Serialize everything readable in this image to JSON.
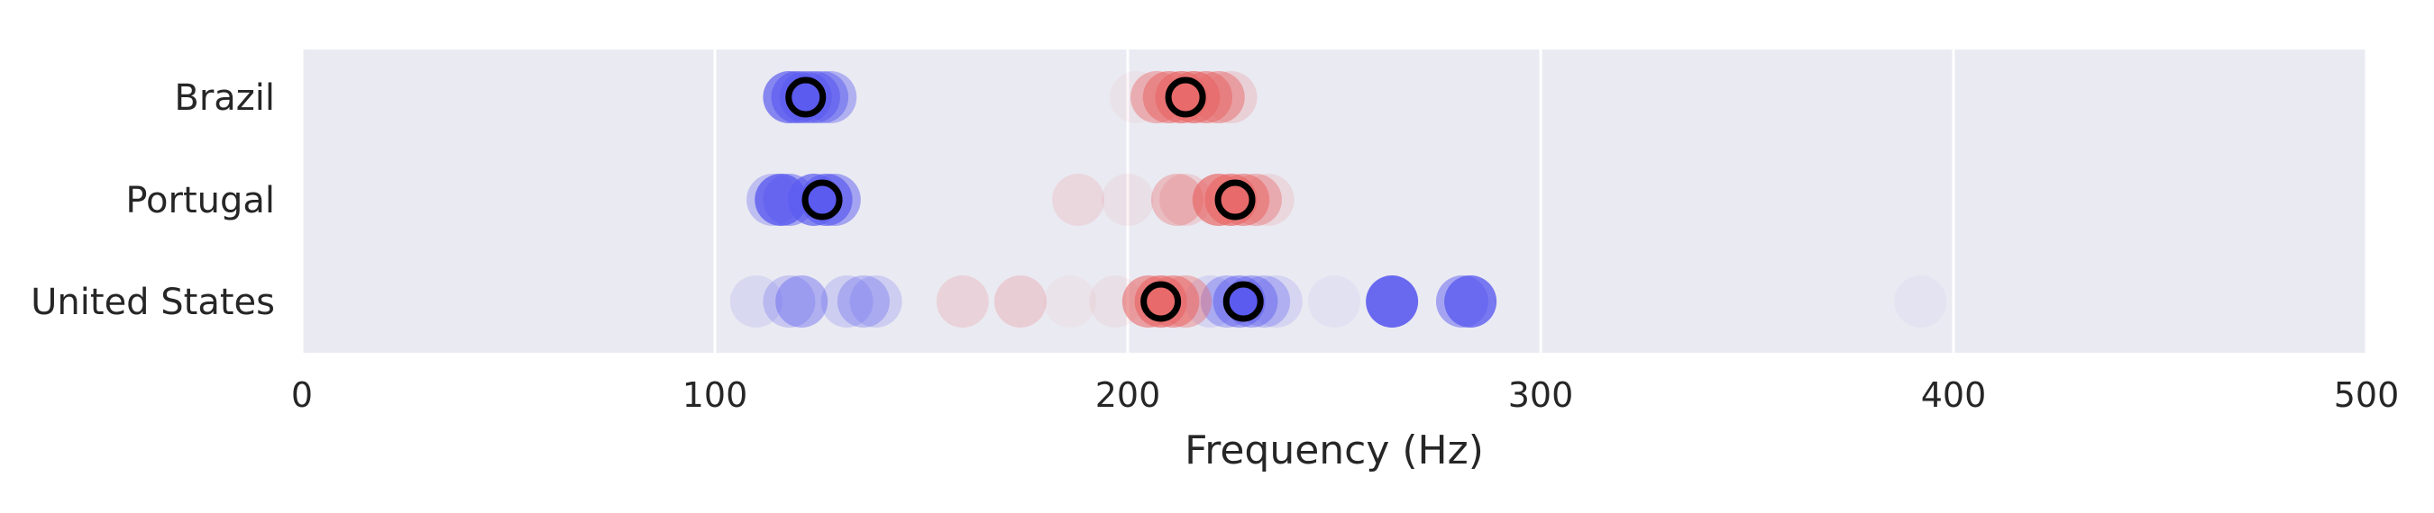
{
  "chart_data": {
    "type": "scatter",
    "xlabel": "Frequency (Hz)",
    "ylabel": "",
    "xlim": [
      0,
      500
    ],
    "xticks": [
      0,
      100,
      200,
      300,
      400,
      500
    ],
    "grid": "x",
    "categories": [
      "Brazil",
      "Portugal",
      "United States"
    ],
    "colors": {
      "background": "#eaeaf2",
      "grid": "#ffffff",
      "series_blue": "#5b5bf0",
      "series_red": "#e86a6a",
      "mean_marker_edge": "#000000"
    },
    "series": [
      {
        "color_key": "series_blue",
        "points": [
          {
            "category": "Brazil",
            "x": 118,
            "opacity": 0.7
          },
          {
            "category": "Brazil",
            "x": 120,
            "opacity": 0.7
          },
          {
            "category": "Brazil",
            "x": 122,
            "opacity": 0.6
          },
          {
            "category": "Brazil",
            "x": 124,
            "opacity": 0.6
          },
          {
            "category": "Brazil",
            "x": 126,
            "opacity": 0.5
          },
          {
            "category": "Brazil",
            "x": 128,
            "opacity": 0.4
          },
          {
            "category": "Portugal",
            "x": 114,
            "opacity": 0.3
          },
          {
            "category": "Portugal",
            "x": 116,
            "opacity": 0.8
          },
          {
            "category": "Portugal",
            "x": 118,
            "opacity": 0.5
          },
          {
            "category": "Portugal",
            "x": 124,
            "opacity": 0.7
          },
          {
            "category": "Portugal",
            "x": 127,
            "opacity": 0.7
          },
          {
            "category": "Portugal",
            "x": 129,
            "opacity": 0.5
          },
          {
            "category": "United States",
            "x": 110,
            "opacity": 0.12
          },
          {
            "category": "United States",
            "x": 118,
            "opacity": 0.25
          },
          {
            "category": "United States",
            "x": 121,
            "opacity": 0.4
          },
          {
            "category": "United States",
            "x": 132,
            "opacity": 0.2
          },
          {
            "category": "United States",
            "x": 136,
            "opacity": 0.3
          },
          {
            "category": "United States",
            "x": 139,
            "opacity": 0.2
          },
          {
            "category": "United States",
            "x": 220,
            "opacity": 0.15
          },
          {
            "category": "United States",
            "x": 224,
            "opacity": 0.35
          },
          {
            "category": "United States",
            "x": 227,
            "opacity": 0.5
          },
          {
            "category": "United States",
            "x": 230,
            "opacity": 0.45
          },
          {
            "category": "United States",
            "x": 233,
            "opacity": 0.3
          },
          {
            "category": "United States",
            "x": 236,
            "opacity": 0.15
          },
          {
            "category": "United States",
            "x": 250,
            "opacity": 0.06
          },
          {
            "category": "United States",
            "x": 264,
            "opacity": 0.9
          },
          {
            "category": "United States",
            "x": 281,
            "opacity": 0.5
          },
          {
            "category": "United States",
            "x": 283,
            "opacity": 0.8
          },
          {
            "category": "United States",
            "x": 392,
            "opacity": 0.05
          }
        ],
        "mean": [
          {
            "category": "Brazil",
            "x": 122
          },
          {
            "category": "Portugal",
            "x": 126
          },
          {
            "category": "United States",
            "x": 228
          }
        ]
      },
      {
        "color_key": "series_red",
        "points": [
          {
            "category": "Brazil",
            "x": 202,
            "opacity": 0.06
          },
          {
            "category": "Brazil",
            "x": 207,
            "opacity": 0.45
          },
          {
            "category": "Brazil",
            "x": 210,
            "opacity": 0.6
          },
          {
            "category": "Brazil",
            "x": 213,
            "opacity": 0.7
          },
          {
            "category": "Brazil",
            "x": 216,
            "opacity": 0.7
          },
          {
            "category": "Brazil",
            "x": 219,
            "opacity": 0.6
          },
          {
            "category": "Brazil",
            "x": 222,
            "opacity": 0.5
          },
          {
            "category": "Brazil",
            "x": 225,
            "opacity": 0.2
          },
          {
            "category": "Portugal",
            "x": 188,
            "opacity": 0.15
          },
          {
            "category": "Portugal",
            "x": 200,
            "opacity": 0.08
          },
          {
            "category": "Portugal",
            "x": 212,
            "opacity": 0.35
          },
          {
            "category": "Portugal",
            "x": 214,
            "opacity": 0.2
          },
          {
            "category": "Portugal",
            "x": 222,
            "opacity": 0.7
          },
          {
            "category": "Portugal",
            "x": 225,
            "opacity": 0.7
          },
          {
            "category": "Portugal",
            "x": 228,
            "opacity": 0.6
          },
          {
            "category": "Portugal",
            "x": 231,
            "opacity": 0.4
          },
          {
            "category": "Portugal",
            "x": 234,
            "opacity": 0.15
          },
          {
            "category": "United States",
            "x": 160,
            "opacity": 0.18
          },
          {
            "category": "United States",
            "x": 174,
            "opacity": 0.22
          },
          {
            "category": "United States",
            "x": 186,
            "opacity": 0.05
          },
          {
            "category": "United States",
            "x": 197,
            "opacity": 0.08
          },
          {
            "category": "United States",
            "x": 205,
            "opacity": 0.6
          },
          {
            "category": "United States",
            "x": 208,
            "opacity": 0.7
          },
          {
            "category": "United States",
            "x": 211,
            "opacity": 0.6
          },
          {
            "category": "United States",
            "x": 214,
            "opacity": 0.4
          }
        ],
        "mean": [
          {
            "category": "Brazil",
            "x": 214
          },
          {
            "category": "Portugal",
            "x": 226
          },
          {
            "category": "United States",
            "x": 208
          }
        ]
      }
    ]
  }
}
